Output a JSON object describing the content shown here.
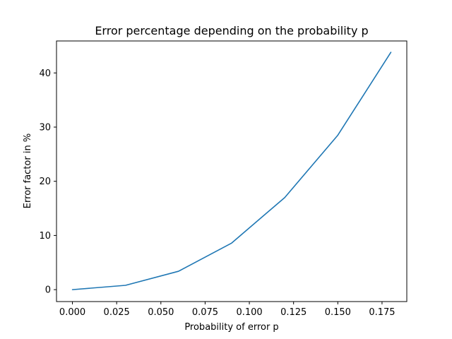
{
  "chart_data": {
    "type": "line",
    "title": "Error percentage depending on the probability p",
    "xlabel": "Probability of error p",
    "ylabel": "Error factor in %",
    "xlim": [
      -0.009,
      0.189
    ],
    "ylim": [
      -2.2,
      45.9
    ],
    "xticks": [
      0.0,
      0.025,
      0.05,
      0.075,
      0.1,
      0.125,
      0.15,
      0.175
    ],
    "xtick_labels": [
      "0.000",
      "0.025",
      "0.050",
      "0.075",
      "0.100",
      "0.125",
      "0.150",
      "0.175"
    ],
    "yticks": [
      0,
      10,
      20,
      30,
      40
    ],
    "ytick_labels": [
      "0",
      "10",
      "20",
      "30",
      "40"
    ],
    "grid": false,
    "series": [
      {
        "color": "#1f77b4",
        "x": [
          0.0,
          0.03,
          0.06,
          0.09,
          0.12,
          0.15,
          0.18
        ],
        "y": [
          0.0,
          0.8,
          3.4,
          8.6,
          17.0,
          28.5,
          43.8
        ]
      }
    ]
  }
}
